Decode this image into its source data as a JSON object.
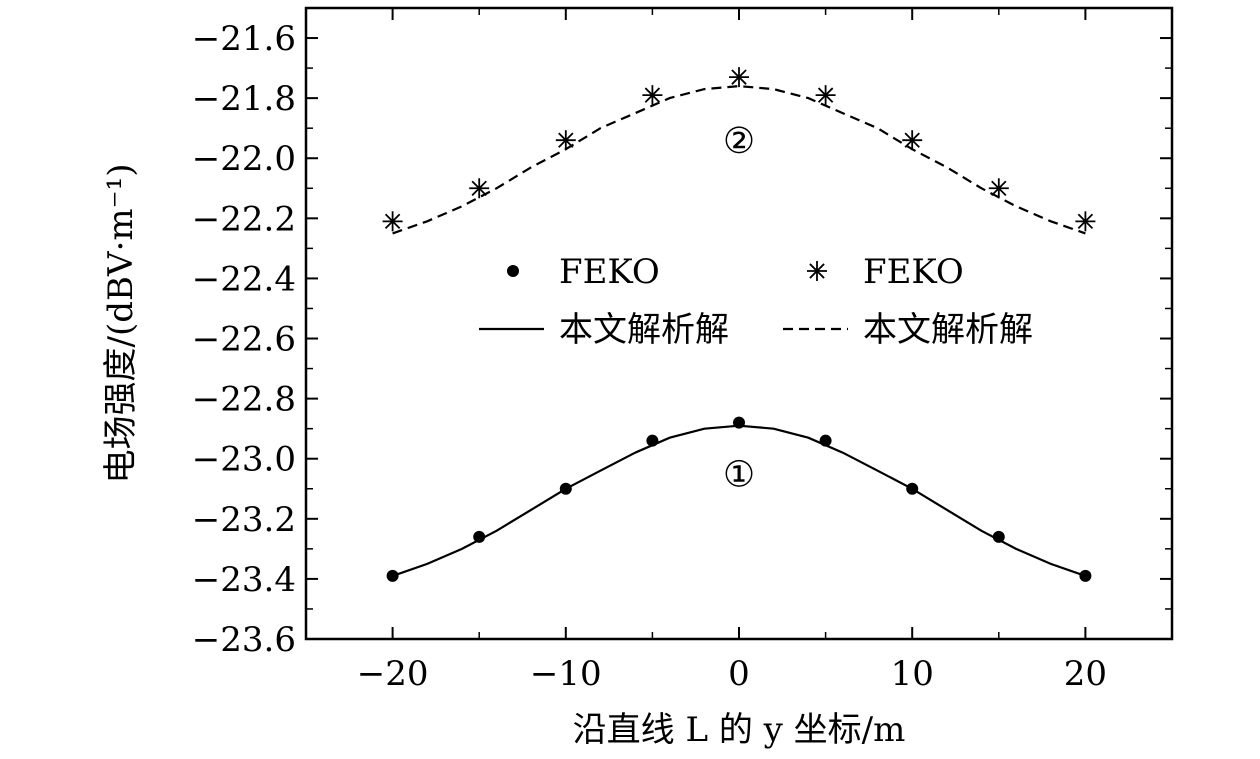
{
  "chart_data": {
    "type": "line",
    "xlabel": "沿直线 L 的 y 坐标/m",
    "ylabel": "电场强度/(dBV·m⁻¹)",
    "xlim": [
      -25,
      25
    ],
    "ylim": [
      -23.6,
      -21.5
    ],
    "x_ticks": [
      -20,
      -10,
      0,
      10,
      20
    ],
    "x_tick_labels": [
      "−20",
      "−10",
      "0",
      "10",
      "20"
    ],
    "y_ticks": [
      -23.6,
      -23.4,
      -23.2,
      -23.0,
      -22.8,
      -22.6,
      -22.4,
      -22.2,
      -22.0,
      -21.8,
      -21.6
    ],
    "y_tick_labels": [
      "−23.6",
      "−23.4",
      "−23.2",
      "−23.0",
      "−22.8",
      "−22.6",
      "−22.4",
      "−22.2",
      "−22.0",
      "−21.8",
      "−21.6"
    ],
    "grid": false,
    "series": [
      {
        "name": "FEKO",
        "kind": "points",
        "marker": "dot",
        "x": [
          -20,
          -15,
          -10,
          -5,
          0,
          5,
          10,
          15,
          20
        ],
        "y": [
          -23.39,
          -23.26,
          -23.1,
          -22.94,
          -22.88,
          -22.94,
          -23.1,
          -23.26,
          -23.39
        ]
      },
      {
        "name": "FEKO",
        "kind": "points",
        "marker": "asterisk",
        "x": [
          -20,
          -15,
          -10,
          -5,
          0,
          5,
          10,
          15,
          20
        ],
        "y": [
          -22.21,
          -22.1,
          -21.94,
          -21.79,
          -21.73,
          -21.79,
          -21.94,
          -22.1,
          -22.21
        ]
      },
      {
        "name": "本文解析解",
        "kind": "line",
        "linestyle": "solid",
        "x": [
          -20,
          -18,
          -16,
          -14,
          -12,
          -10,
          -8,
          -6,
          -4,
          -2,
          0,
          2,
          4,
          6,
          8,
          10,
          12,
          14,
          16,
          18,
          20
        ],
        "y": [
          -23.39,
          -23.35,
          -23.3,
          -23.24,
          -23.17,
          -23.1,
          -23.04,
          -22.98,
          -22.93,
          -22.9,
          -22.89,
          -22.9,
          -22.93,
          -22.98,
          -23.04,
          -23.1,
          -23.17,
          -23.24,
          -23.3,
          -23.35,
          -23.39
        ]
      },
      {
        "name": "本文解析解",
        "kind": "line",
        "linestyle": "dashed",
        "x": [
          -20,
          -18,
          -16,
          -14,
          -12,
          -10,
          -8,
          -6,
          -4,
          -2,
          0,
          2,
          4,
          6,
          8,
          10,
          12,
          14,
          16,
          18,
          20
        ],
        "y": [
          -22.25,
          -22.21,
          -22.16,
          -22.1,
          -22.03,
          -21.97,
          -21.9,
          -21.85,
          -21.8,
          -21.77,
          -21.76,
          -21.77,
          -21.8,
          -21.85,
          -21.9,
          -21.97,
          -22.03,
          -22.1,
          -22.16,
          -22.21,
          -22.25
        ]
      }
    ],
    "annotations": [
      {
        "text": "①",
        "x": 0,
        "y": -23.05
      },
      {
        "text": "②",
        "x": 0,
        "y": -21.94
      }
    ],
    "legend": {
      "placement": "center",
      "rows": [
        [
          {
            "marker": "dot",
            "label": "FEKO"
          },
          {
            "marker": "asterisk",
            "label": "FEKO"
          }
        ],
        [
          {
            "marker": "solid-line",
            "label": "本文解析解"
          },
          {
            "marker": "dashed-line",
            "label": "本文解析解"
          }
        ]
      ]
    }
  }
}
